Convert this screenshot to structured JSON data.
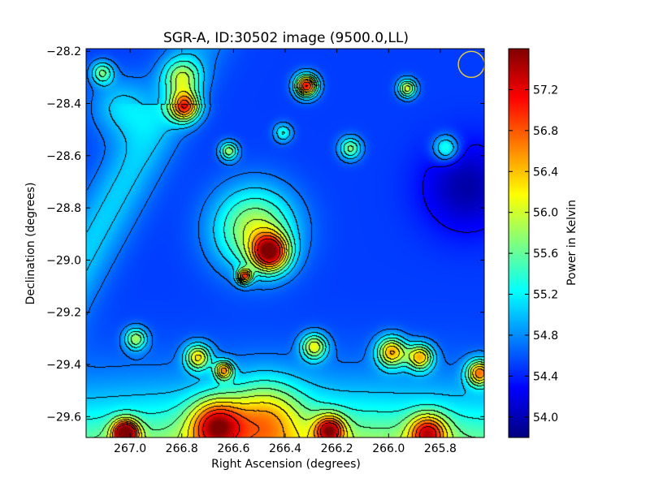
{
  "chart_data": {
    "type": "heatmap",
    "title": "SGR-A, ID:30502 image (9500.0,LL)",
    "xlabel": "Right Ascension (degrees)",
    "ylabel": "Declination (degrees)",
    "xlim": [
      267.17,
      265.63
    ],
    "ylim": [
      -29.68,
      -28.19
    ],
    "x_ticks": [
      267.0,
      266.8,
      266.6,
      266.4,
      266.2,
      266.0,
      265.8
    ],
    "x_tick_labels": [
      "267.0",
      "266.8",
      "266.6",
      "266.4",
      "266.2",
      "266.0",
      "265.8"
    ],
    "y_ticks": [
      -28.2,
      -28.4,
      -28.6,
      -28.8,
      -29.0,
      -29.2,
      -29.4,
      -29.6
    ],
    "y_tick_labels": [
      "−28.2",
      "−28.4",
      "−28.6",
      "−28.8",
      "−29.0",
      "−29.2",
      "−29.4",
      "−29.6"
    ],
    "colorbar": {
      "label": "Power in Kelvin",
      "range": [
        53.8,
        57.6
      ],
      "ticks": [
        54.0,
        54.4,
        54.8,
        55.2,
        55.6,
        56.0,
        56.4,
        56.8,
        57.2
      ],
      "tick_labels": [
        "54.0",
        "54.4",
        "54.8",
        "55.2",
        "55.6",
        "56.0",
        "56.4",
        "56.8",
        "57.2"
      ],
      "colormap": "jet"
    },
    "background_level": 54.5,
    "sources": [
      {
        "ra": 266.46,
        "dec": -28.97,
        "peak": 57.3,
        "sigma": 0.05
      },
      {
        "ra": 266.52,
        "dec": -28.88,
        "peak": 56.1,
        "sigma": 0.11
      },
      {
        "ra": 266.56,
        "dec": -29.06,
        "peak": 56.8,
        "sigma": 0.02
      },
      {
        "ra": 266.32,
        "dec": -28.33,
        "peak": 57.4,
        "sigma": 0.03
      },
      {
        "ra": 266.79,
        "dec": -28.41,
        "peak": 56.9,
        "sigma": 0.04
      },
      {
        "ra": 265.93,
        "dec": -28.34,
        "peak": 56.2,
        "sigma": 0.025
      },
      {
        "ra": 266.62,
        "dec": -28.58,
        "peak": 55.9,
        "sigma": 0.025
      },
      {
        "ra": 265.99,
        "dec": -29.35,
        "peak": 56.6,
        "sigma": 0.04
      },
      {
        "ra": 265.88,
        "dec": -29.37,
        "peak": 56.5,
        "sigma": 0.035
      },
      {
        "ra": 265.65,
        "dec": -29.43,
        "peak": 56.7,
        "sigma": 0.035
      },
      {
        "ra": 266.29,
        "dec": -29.33,
        "peak": 56.2,
        "sigma": 0.035
      },
      {
        "ra": 266.74,
        "dec": -29.37,
        "peak": 56.3,
        "sigma": 0.035
      },
      {
        "ra": 266.64,
        "dec": -29.42,
        "peak": 56.5,
        "sigma": 0.025
      },
      {
        "ra": 266.98,
        "dec": -29.3,
        "peak": 55.9,
        "sigma": 0.03
      },
      {
        "ra": 266.15,
        "dec": -28.57,
        "peak": 55.8,
        "sigma": 0.03
      },
      {
        "ra": 265.78,
        "dec": -28.57,
        "peak": 55.6,
        "sigma": 0.035
      },
      {
        "ra": 266.8,
        "dec": -28.3,
        "peak": 55.8,
        "sigma": 0.05
      },
      {
        "ra": 267.11,
        "dec": -28.28,
        "peak": 55.7,
        "sigma": 0.03
      },
      {
        "ra": 266.41,
        "dec": -28.51,
        "peak": 55.4,
        "sigma": 0.025
      },
      {
        "ra": 267.04,
        "dec": -28.41,
        "peak": 55.1,
        "sigma": 0.08
      },
      {
        "ra": 267.02,
        "dec": -29.66,
        "peak": 57.4,
        "sigma": 0.035
      },
      {
        "ra": 266.67,
        "dec": -29.63,
        "peak": 56.6,
        "sigma": 0.07
      },
      {
        "ra": 266.23,
        "dec": -29.65,
        "peak": 56.7,
        "sigma": 0.04
      },
      {
        "ra": 265.85,
        "dec": -29.66,
        "peak": 56.5,
        "sigma": 0.05
      },
      {
        "ra": 266.48,
        "dec": -29.6,
        "peak": 55.8,
        "sigma": 0.1
      }
    ],
    "gradient_source": {
      "ra": 266.4,
      "dec": -29.85,
      "peak": 56.3,
      "sigma_ra": 1.2,
      "sigma_dec": 0.22
    },
    "contour_levels": [
      54.3,
      54.7,
      55.0,
      55.3,
      55.6,
      55.9,
      56.2,
      56.5,
      56.8,
      57.1
    ],
    "beam_marker": {
      "ra": 265.68,
      "dec": -28.25
    }
  }
}
